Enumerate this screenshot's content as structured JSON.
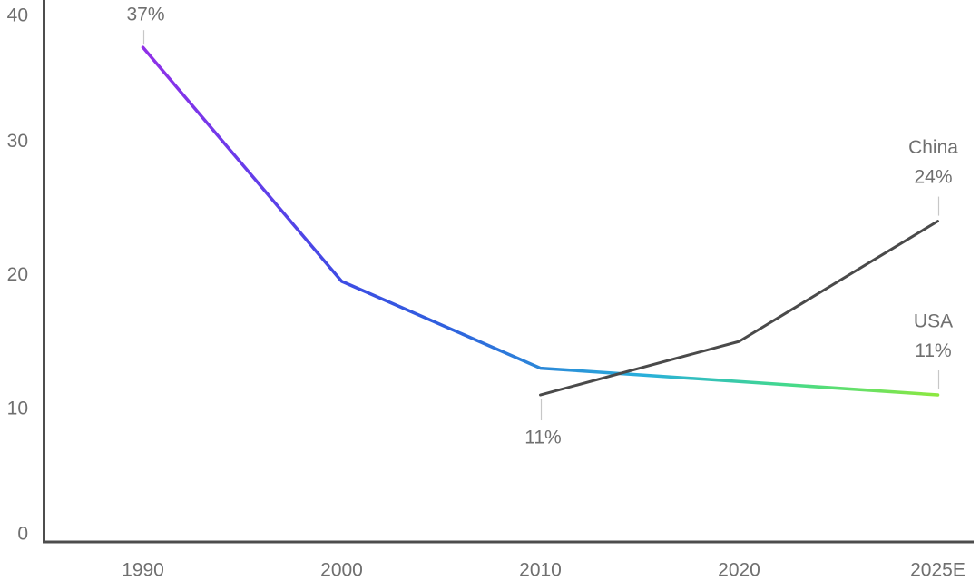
{
  "chart_data": {
    "type": "line",
    "title": "",
    "xlabel": "",
    "ylabel": "",
    "grid": false,
    "legend_position": "inline-end-labels",
    "background": "#FFFFFF",
    "categories": [
      "1990",
      "2000",
      "2010",
      "2020",
      "2025E"
    ],
    "y_axis": {
      "min": 0,
      "max": 40,
      "ticks": [
        40,
        30,
        20,
        10,
        0
      ]
    },
    "series": [
      {
        "name": "USA",
        "style": "gradient",
        "line_width": 3.5,
        "gradient": [
          {
            "offset": 0,
            "color": "#9130E8"
          },
          {
            "offset": 0.12,
            "color": "#6B3BEA"
          },
          {
            "offset": 0.25,
            "color": "#3E4CE4"
          },
          {
            "offset": 0.38,
            "color": "#2F60DE"
          },
          {
            "offset": 0.5,
            "color": "#2B87D8"
          },
          {
            "offset": 0.63,
            "color": "#29AFDB"
          },
          {
            "offset": 0.81,
            "color": "#43D98C"
          },
          {
            "offset": 1,
            "color": "#8DE83F"
          }
        ],
        "points": [
          {
            "x": "1990",
            "y": 37
          },
          {
            "x": "2000",
            "y": 19.5
          },
          {
            "x": "2010",
            "y": 13
          },
          {
            "x": "2025E",
            "y": 11
          }
        ],
        "start_label": "37%",
        "start_label_position": "above",
        "end_label_line1": "USA",
        "end_label_line2": "11%"
      },
      {
        "name": "China",
        "style": "solid",
        "color": "#4A4A4A",
        "line_width": 3,
        "points": [
          {
            "x": "2010",
            "y": 11
          },
          {
            "x": "2020",
            "y": 15
          },
          {
            "x": "2025E",
            "y": 24
          }
        ],
        "start_label": "11%",
        "start_label_position": "below",
        "end_label_line1": "China",
        "end_label_line2": "24%"
      }
    ],
    "colors": {
      "axis": "#4D4D4D",
      "label": "#6F6F6F",
      "leader": "#C7C7C7",
      "background": "#FFFFFF"
    }
  }
}
